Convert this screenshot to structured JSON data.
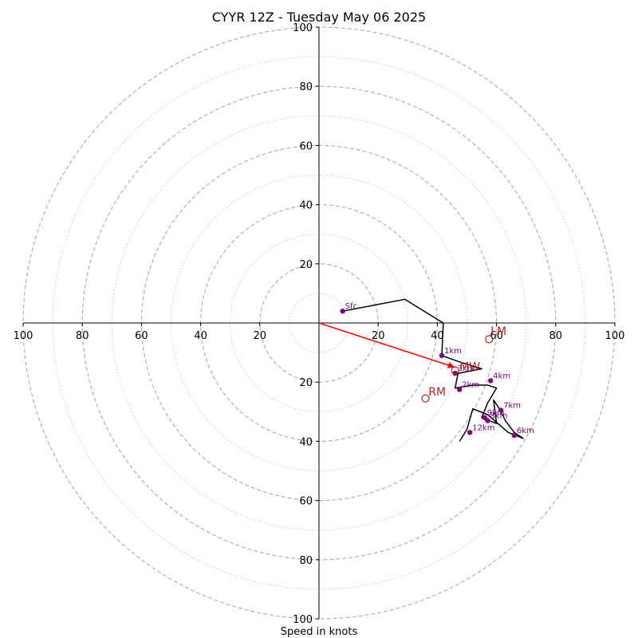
{
  "chart_data": {
    "type": "scatter",
    "title": "CYYR 12Z - Tuesday May 06 2025",
    "xlabel": "Speed in knots",
    "range_max": 100,
    "ring_dashed": [
      20,
      40,
      60,
      80,
      100
    ],
    "ring_dotted": [
      10,
      30,
      50,
      70,
      90
    ],
    "tick_values": [
      20,
      40,
      60,
      80,
      100
    ],
    "tick_labels": {
      "left": [
        "20",
        "40",
        "60",
        "80",
        "100"
      ],
      "right": [
        "20",
        "40",
        "60",
        "80",
        "100"
      ],
      "up": [
        "20",
        "40",
        "60",
        "80",
        "100"
      ],
      "down": [
        "20",
        "40",
        "60",
        "80",
        "100"
      ]
    },
    "grid": true,
    "trace": [
      [
        8,
        4
      ],
      [
        29,
        8
      ],
      [
        42,
        0
      ],
      [
        41.5,
        -11
      ],
      [
        47,
        -13
      ],
      [
        55,
        -15.5
      ],
      [
        47,
        -17
      ],
      [
        46,
        -22
      ],
      [
        52,
        -21
      ],
      [
        57,
        -21
      ],
      [
        60,
        -22
      ],
      [
        57,
        -27
      ],
      [
        55,
        -32
      ],
      [
        60,
        -34
      ],
      [
        59,
        -26
      ],
      [
        61,
        -29
      ],
      [
        63,
        -33
      ],
      [
        66,
        -37
      ],
      [
        69,
        -39
      ],
      [
        64,
        -37
      ],
      [
        57,
        -31
      ],
      [
        52,
        -29
      ],
      [
        50,
        -36
      ],
      [
        47.5,
        -40
      ]
    ],
    "height_points": [
      {
        "label": "Sfc",
        "u": 8,
        "v": 4
      },
      {
        "label": "1km",
        "u": 41.5,
        "v": -11
      },
      {
        "label": "3km",
        "u": 46,
        "v": -17
      },
      {
        "label": "2km",
        "u": 47.5,
        "v": -22.5
      },
      {
        "label": "4km",
        "u": 58,
        "v": -19.5
      },
      {
        "label": "7km",
        "u": 61.5,
        "v": -29.5
      },
      {
        "label": "9km",
        "u": 56,
        "v": -32
      },
      {
        "label": "8km",
        "u": 57,
        "v": -33
      },
      {
        "label": "6km",
        "u": 66,
        "v": -38
      },
      {
        "label": "12km",
        "u": 51,
        "v": -37
      }
    ],
    "storm_motion": [
      {
        "label": "LM",
        "u": 57.5,
        "v": -5.5,
        "dx": 0.5,
        "dy": 1.5
      },
      {
        "label": "MW",
        "u": 46,
        "v": -16,
        "dx": 1.5,
        "dy": 0
      },
      {
        "label": "RM",
        "u": 36,
        "v": -25.5,
        "dx": 1,
        "dy": 1
      }
    ],
    "shear_vector": {
      "from": [
        0,
        0
      ],
      "to": [
        46,
        -15
      ]
    },
    "colors": {
      "trace": "#000000",
      "points": "#800080",
      "motion": "#b22222",
      "shear": "#ff0000",
      "ring": "#b0b0b0",
      "axes": "#000000"
    }
  }
}
